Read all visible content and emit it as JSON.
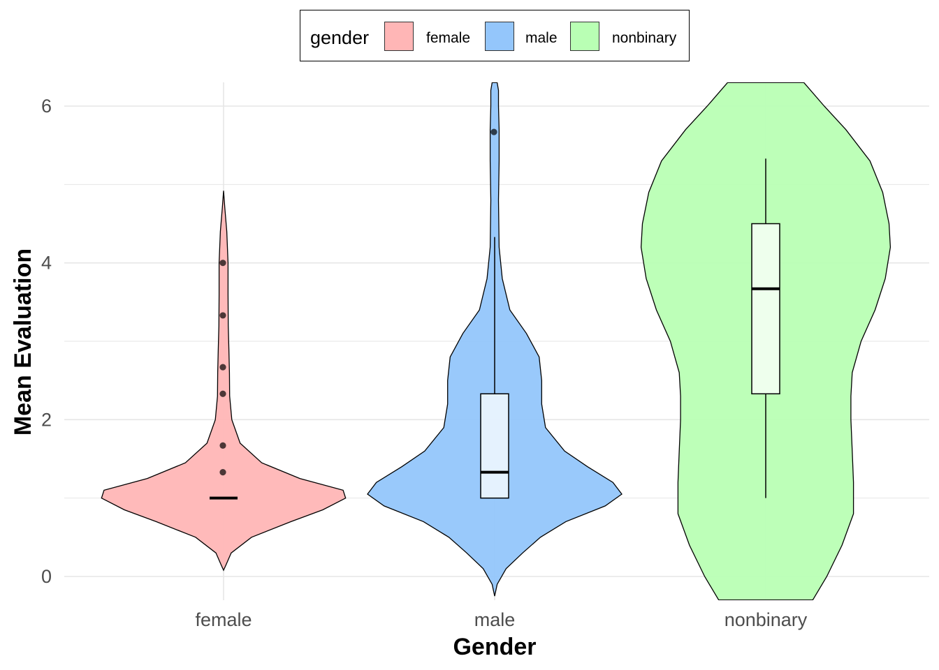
{
  "chart_data": {
    "type": "violin",
    "xlabel": "Gender",
    "ylabel": "Mean Evaluation",
    "categories": [
      "female",
      "male",
      "nonbinary"
    ],
    "ylim": [
      -0.3,
      6.3
    ],
    "yticks": [
      0,
      2,
      4,
      6
    ],
    "grid": true,
    "legend": {
      "title": "gender",
      "placement": "top",
      "entries": [
        {
          "label": "female",
          "color": "#F8766D"
        },
        {
          "label": "male",
          "color": "#3D9BF7"
        },
        {
          "label": "nonbinary",
          "color": "#7CFC6A"
        }
      ]
    },
    "series": [
      {
        "name": "female",
        "fill": "#FFB6B6",
        "violin_range": [
          0.08,
          4.92
        ],
        "boxplot": {
          "min": 1.0,
          "q1": 1.0,
          "median": 1.0,
          "q3": 1.0,
          "max": 1.0
        },
        "outliers": [
          1.33,
          1.67,
          2.33,
          2.67,
          3.33,
          4.0
        ]
      },
      {
        "name": "male",
        "fill": "#94C6FB",
        "violin_range": [
          -0.25,
          6.3
        ],
        "boxplot": {
          "min": 1.0,
          "q1": 1.0,
          "median": 1.33,
          "q3": 2.33,
          "max": 4.33
        },
        "outliers": [
          5.67
        ]
      },
      {
        "name": "nonbinary",
        "fill": "#B9FFB4",
        "violin_range": [
          -0.3,
          6.3
        ],
        "boxplot": {
          "min": 1.0,
          "q1": 2.33,
          "median": 3.67,
          "q3": 4.5,
          "max": 5.33
        },
        "outliers": []
      }
    ]
  }
}
